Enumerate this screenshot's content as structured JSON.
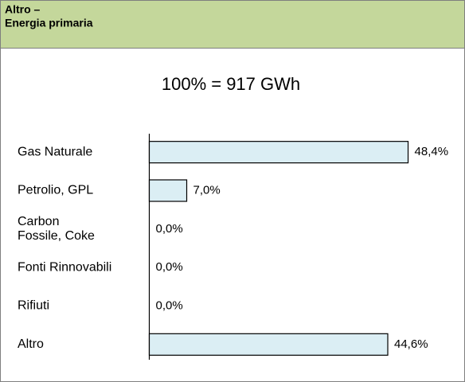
{
  "chart_data": {
    "type": "bar",
    "orientation": "horizontal",
    "title": [
      "Altro –",
      "Energia primaria"
    ],
    "subtitle": "100% = 917 GWh",
    "categories": [
      "Gas Naturale",
      "Petrolio, GPL",
      "Carbon\nFossile, Coke",
      "Fonti Rinnovabili",
      "Rifiuti",
      "Altro"
    ],
    "values": [
      48.4,
      7.0,
      0.0,
      0.0,
      0.0,
      44.6
    ],
    "value_labels": [
      "48,4%",
      "7,0%",
      "0,0%",
      "0,0%",
      "0,0%",
      "44,6%"
    ],
    "color": "#dbeef4",
    "xlim": [
      0,
      58
    ]
  }
}
